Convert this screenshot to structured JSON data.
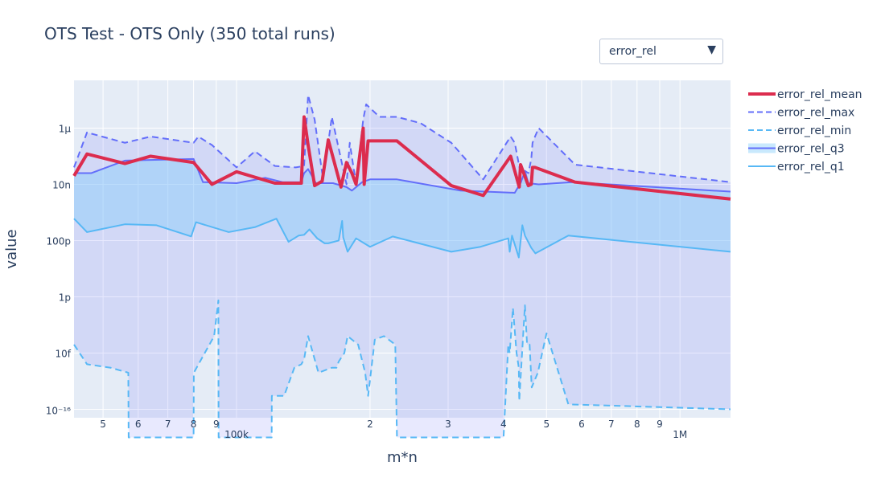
{
  "title": "OTS Test - OTS Only (350 total runs)",
  "dropdown": {
    "selected": "error_rel",
    "arrow": "▼"
  },
  "chart_data": {
    "type": "line",
    "title": "OTS Test - OTS Only (350 total runs)",
    "xlabel": "m*n",
    "ylabel": "value",
    "x_scale": "log",
    "y_scale": "log",
    "xlim": [
      43000,
      1300000
    ],
    "ylim": [
      5e-17,
      5e-05
    ],
    "x_ticks": [
      {
        "value": 50000,
        "label": "5"
      },
      {
        "value": 60000,
        "label": "6"
      },
      {
        "value": 70000,
        "label": "7"
      },
      {
        "value": 80000,
        "label": "8"
      },
      {
        "value": 90000,
        "label": "9"
      },
      {
        "value": 100000,
        "label": "100k"
      },
      {
        "value": 200000,
        "label": "2"
      },
      {
        "value": 300000,
        "label": "3"
      },
      {
        "value": 400000,
        "label": "4"
      },
      {
        "value": 500000,
        "label": "5"
      },
      {
        "value": 600000,
        "label": "6"
      },
      {
        "value": 700000,
        "label": "7"
      },
      {
        "value": 800000,
        "label": "8"
      },
      {
        "value": 900000,
        "label": "9"
      },
      {
        "value": 1000000,
        "label": "1M"
      }
    ],
    "y_ticks": [
      {
        "value": 1e-06,
        "label": "1μ"
      },
      {
        "value": 1e-08,
        "label": "10n"
      },
      {
        "value": 1e-10,
        "label": "100p"
      },
      {
        "value": 1e-12,
        "label": "1p"
      },
      {
        "value": 1e-14,
        "label": "10f"
      },
      {
        "value": 1e-16,
        "label": "10⁻¹⁶"
      }
    ],
    "grid": true,
    "legend_position": "right",
    "series": [
      {
        "name": "error_rel_mean",
        "color": "#dc2c4e",
        "dash": "solid",
        "width": 4,
        "x": [
          43000,
          46000,
          56000,
          64000,
          80000,
          88000,
          100000,
          122000,
          140000,
          142000,
          145000,
          150000,
          156000,
          161000,
          172000,
          177000,
          182000,
          186000,
          193000,
          194000,
          198000,
          230000,
          305000,
          360000,
          415000,
          434000,
          437000,
          455000,
          462000,
          465000,
          471000,
          580000,
          1300000
        ],
        "y": [
          2e-08,
          1.2e-07,
          5.5e-08,
          1e-07,
          6e-08,
          1e-08,
          2.8e-08,
          1.1e-08,
          1.1e-08,
          2.5e-06,
          2.5e-07,
          9e-09,
          1.3e-08,
          3.8e-07,
          8e-09,
          6e-08,
          2.5e-08,
          1e-08,
          1e-06,
          1e-08,
          3.5e-07,
          3.5e-07,
          9e-09,
          4e-09,
          1e-07,
          8e-09,
          5e-08,
          9e-09,
          1e-08,
          4e-08,
          4e-08,
          1.2e-08,
          3e-09
        ]
      },
      {
        "name": "error_rel_max",
        "color": "#636efa",
        "dash": "dash",
        "width": 2,
        "x": [
          43000,
          46000,
          56000,
          64000,
          80000,
          82000,
          88000,
          100000,
          110000,
          122000,
          136000,
          142000,
          145000,
          150000,
          156000,
          161000,
          164000,
          177000,
          180000,
          186000,
          193000,
          196000,
          210000,
          230000,
          260000,
          305000,
          360000,
          415000,
          424000,
          437000,
          447000,
          455000,
          462000,
          465000,
          471000,
          480000,
          580000,
          1300000
        ],
        "y": [
          4e-08,
          7e-07,
          3e-07,
          5e-07,
          3e-07,
          5e-07,
          2.5e-07,
          4e-08,
          1.5e-07,
          4.5e-08,
          4e-08,
          4.5e-08,
          1.5e-05,
          2e-06,
          2.5e-08,
          3e-07,
          2.5e-06,
          1e-08,
          3e-07,
          1e-08,
          2e-06,
          7e-06,
          2.5e-06,
          2.5e-06,
          1.5e-06,
          3e-07,
          1.5e-08,
          5e-07,
          3e-07,
          2.5e-08,
          3e-08,
          2.5e-08,
          8e-08,
          3e-07,
          5e-07,
          1e-06,
          5e-08,
          1.2e-08
        ]
      },
      {
        "name": "error_rel_min",
        "color": "#57b8f5",
        "dash": "dash",
        "width": 2,
        "x": [
          43000,
          46000,
          52000,
          57000,
          57100,
          80000,
          80100,
          89000,
          91000,
          91100,
          120000,
          120100,
          128000,
          135000,
          140000,
          142000,
          145000,
          153000,
          164000,
          168000,
          170000,
          175000,
          178000,
          188000,
          195000,
          198000,
          205000,
          215000,
          228000,
          230000,
          400000,
          410000,
          413000,
          420000,
          428000,
          433000,
          434000,
          447000,
          452000,
          458000,
          463000,
          478000,
          500000,
          560000,
          1300000
        ],
        "y": [
          2e-14,
          4e-15,
          3e-15,
          2e-15,
          1e-17,
          1e-17,
          2e-15,
          4e-14,
          7.5e-13,
          1e-17,
          1e-17,
          3e-16,
          3e-16,
          3e-15,
          4e-15,
          6e-15,
          4e-14,
          2e-15,
          3e-15,
          3e-15,
          5e-15,
          1e-14,
          4e-14,
          2e-14,
          2e-15,
          3e-16,
          3e-14,
          4e-14,
          2e-14,
          1e-17,
          1e-17,
          2e-14,
          1e-14,
          4e-13,
          1e-14,
          3e-15,
          2e-16,
          5e-13,
          2e-14,
          2e-14,
          6e-16,
          2e-15,
          5e-14,
          1.5e-16,
          1e-16
        ]
      },
      {
        "name": "error_rel_q3",
        "color": "#636efa",
        "dash": "solid",
        "width": 2,
        "x": [
          43000,
          47000,
          56000,
          80000,
          84000,
          100000,
          116000,
          127000,
          140000,
          142000,
          145000,
          151000,
          165000,
          177000,
          182000,
          192000,
          200000,
          230000,
          320000,
          424000,
          438000,
          447000,
          455000,
          480000,
          570000,
          1300000
        ],
        "y": [
          2.5e-08,
          2.5e-08,
          7e-08,
          8e-08,
          1.2e-08,
          1.1e-08,
          1.7e-08,
          1.2e-08,
          1.2e-08,
          2.5e-08,
          3.5e-08,
          1.1e-08,
          1.1e-08,
          8e-09,
          6e-09,
          1.2e-08,
          1.5e-08,
          1.5e-08,
          6e-09,
          5e-09,
          1.2e-08,
          3e-08,
          1.1e-08,
          1e-08,
          1.2e-08,
          5.5e-09
        ]
      },
      {
        "name": "error_rel_q1",
        "color": "#57b8f5",
        "dash": "solid",
        "width": 2,
        "x": [
          43000,
          46000,
          56000,
          66000,
          79000,
          81000,
          96000,
          110000,
          123000,
          131000,
          138000,
          142000,
          146000,
          152000,
          158000,
          161000,
          170000,
          173000,
          174000,
          178000,
          186000,
          200000,
          225000,
          305000,
          355000,
          410000,
          413000,
          418000,
          433000,
          441000,
          447000,
          462000,
          472000,
          560000,
          1300000
        ],
        "y": [
          6e-10,
          2e-10,
          3.8e-10,
          3.5e-10,
          1.4e-10,
          4.5e-10,
          2e-10,
          3e-10,
          6e-10,
          9e-11,
          1.5e-10,
          1.6e-10,
          2.5e-10,
          1.2e-10,
          8e-11,
          8e-11,
          1e-10,
          5e-10,
          1.3e-10,
          4e-11,
          1.2e-10,
          6e-11,
          1.4e-10,
          4e-11,
          6e-11,
          1.2e-10,
          4e-11,
          1.5e-10,
          2.5e-11,
          3.5e-10,
          1.5e-10,
          5.5e-11,
          3.5e-11,
          1.5e-10,
          4e-11
        ]
      }
    ]
  },
  "legend": [
    {
      "label": "error_rel_mean"
    },
    {
      "label": "error_rel_max"
    },
    {
      "label": "error_rel_min"
    },
    {
      "label": "error_rel_q3"
    },
    {
      "label": "error_rel_q1"
    }
  ]
}
